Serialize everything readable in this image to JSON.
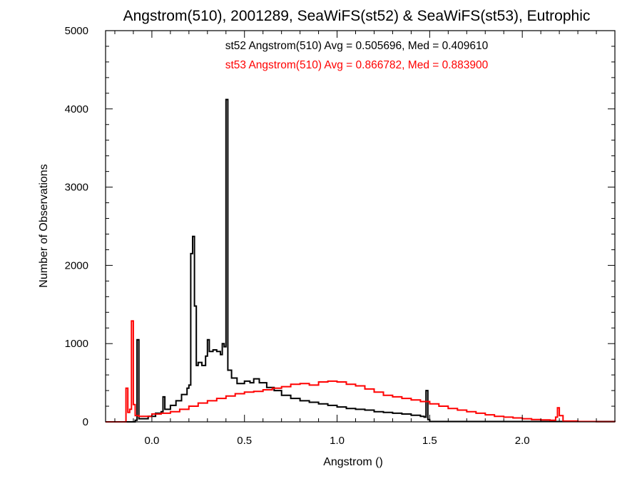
{
  "chart_data": {
    "type": "histogram",
    "title": "Angstrom(510), 2001289, SeaWiFS(st52) & SeaWiFS(st53), Eutrophic",
    "xlabel": "Angstrom ()",
    "ylabel": "Number of Observations",
    "xlim": [
      -0.25,
      2.5
    ],
    "ylim": [
      0,
      5000
    ],
    "xticks": [
      0.0,
      0.5,
      1.0,
      1.5,
      2.0
    ],
    "xtick_labels": [
      "0.0",
      "0.5",
      "1.0",
      "1.5",
      "2.0"
    ],
    "yticks": [
      0,
      1000,
      2000,
      3000,
      4000,
      5000
    ],
    "ytick_labels": [
      "0",
      "1000",
      "2000",
      "3000",
      "4000",
      "5000"
    ],
    "grid": false,
    "annotations": [
      {
        "text": "st52 Angstrom(510) Avg = 0.505696, Med = 0.409610",
        "color": "#000000"
      },
      {
        "text": "st53 Angstrom(510) Avg = 0.866782, Med = 0.883900",
        "color": "#ff0000"
      }
    ],
    "series": [
      {
        "color": "#000000",
        "points": [
          [
            -0.25,
            0
          ],
          [
            -0.1,
            0
          ],
          [
            -0.09,
            20
          ],
          [
            -0.08,
            1050
          ],
          [
            -0.07,
            1050
          ],
          [
            -0.07,
            40
          ],
          [
            -0.02,
            70
          ],
          [
            0.02,
            110
          ],
          [
            0.05,
            130
          ],
          [
            0.06,
            320
          ],
          [
            0.07,
            160
          ],
          [
            0.1,
            210
          ],
          [
            0.13,
            270
          ],
          [
            0.16,
            350
          ],
          [
            0.19,
            430
          ],
          [
            0.2,
            470
          ],
          [
            0.21,
            2150
          ],
          [
            0.22,
            2370
          ],
          [
            0.23,
            1480
          ],
          [
            0.24,
            720
          ],
          [
            0.25,
            760
          ],
          [
            0.27,
            720
          ],
          [
            0.29,
            840
          ],
          [
            0.3,
            1050
          ],
          [
            0.31,
            900
          ],
          [
            0.33,
            920
          ],
          [
            0.35,
            900
          ],
          [
            0.37,
            860
          ],
          [
            0.38,
            1000
          ],
          [
            0.39,
            960
          ],
          [
            0.4,
            4120
          ],
          [
            0.41,
            660
          ],
          [
            0.43,
            560
          ],
          [
            0.46,
            490
          ],
          [
            0.5,
            520
          ],
          [
            0.53,
            500
          ],
          [
            0.55,
            550
          ],
          [
            0.58,
            500
          ],
          [
            0.62,
            440
          ],
          [
            0.66,
            400
          ],
          [
            0.7,
            340
          ],
          [
            0.75,
            300
          ],
          [
            0.8,
            270
          ],
          [
            0.85,
            250
          ],
          [
            0.9,
            230
          ],
          [
            0.95,
            210
          ],
          [
            1.0,
            190
          ],
          [
            1.05,
            170
          ],
          [
            1.1,
            160
          ],
          [
            1.15,
            150
          ],
          [
            1.2,
            130
          ],
          [
            1.25,
            120
          ],
          [
            1.3,
            110
          ],
          [
            1.35,
            100
          ],
          [
            1.4,
            85
          ],
          [
            1.45,
            70
          ],
          [
            1.47,
            60
          ],
          [
            1.48,
            400
          ],
          [
            1.49,
            30
          ],
          [
            1.5,
            5
          ],
          [
            2.5,
            0
          ]
        ]
      },
      {
        "color": "#ff0000",
        "points": [
          [
            -0.25,
            0
          ],
          [
            -0.15,
            0
          ],
          [
            -0.14,
            430
          ],
          [
            -0.13,
            120
          ],
          [
            -0.12,
            160
          ],
          [
            -0.11,
            1290
          ],
          [
            -0.1,
            220
          ],
          [
            -0.09,
            80
          ],
          [
            -0.07,
            70
          ],
          [
            0.0,
            100
          ],
          [
            0.05,
            110
          ],
          [
            0.1,
            130
          ],
          [
            0.15,
            160
          ],
          [
            0.2,
            200
          ],
          [
            0.25,
            240
          ],
          [
            0.3,
            270
          ],
          [
            0.35,
            300
          ],
          [
            0.4,
            330
          ],
          [
            0.45,
            360
          ],
          [
            0.5,
            380
          ],
          [
            0.55,
            390
          ],
          [
            0.6,
            410
          ],
          [
            0.65,
            430
          ],
          [
            0.7,
            450
          ],
          [
            0.75,
            480
          ],
          [
            0.8,
            490
          ],
          [
            0.85,
            470
          ],
          [
            0.9,
            510
          ],
          [
            0.95,
            520
          ],
          [
            1.0,
            510
          ],
          [
            1.05,
            480
          ],
          [
            1.1,
            460
          ],
          [
            1.15,
            420
          ],
          [
            1.2,
            380
          ],
          [
            1.25,
            340
          ],
          [
            1.3,
            320
          ],
          [
            1.35,
            300
          ],
          [
            1.4,
            280
          ],
          [
            1.45,
            260
          ],
          [
            1.5,
            230
          ],
          [
            1.55,
            200
          ],
          [
            1.6,
            170
          ],
          [
            1.65,
            150
          ],
          [
            1.7,
            130
          ],
          [
            1.75,
            110
          ],
          [
            1.8,
            90
          ],
          [
            1.85,
            70
          ],
          [
            1.9,
            60
          ],
          [
            1.95,
            50
          ],
          [
            2.0,
            40
          ],
          [
            2.05,
            30
          ],
          [
            2.1,
            25
          ],
          [
            2.15,
            20
          ],
          [
            2.18,
            60
          ],
          [
            2.19,
            180
          ],
          [
            2.2,
            80
          ],
          [
            2.22,
            10
          ],
          [
            2.3,
            5
          ],
          [
            2.4,
            2
          ],
          [
            2.5,
            0
          ]
        ]
      }
    ]
  }
}
